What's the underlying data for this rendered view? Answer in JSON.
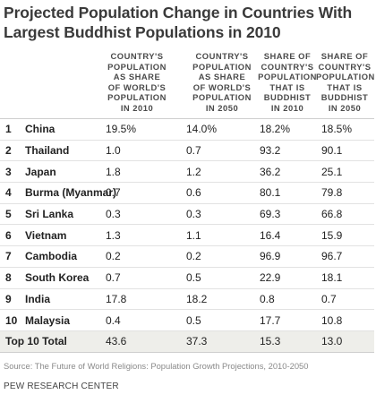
{
  "title": "Projected Population Change in Countries With Largest Buddhist Populations in 2010",
  "headers": [
    [
      "COUNTRY'S",
      "POPULATION",
      "AS SHARE",
      "OF WORLD'S",
      "POPULATION",
      "IN 2010"
    ],
    [
      "COUNTRY'S",
      "POPULATION",
      "AS SHARE",
      "OF WORLD'S",
      "POPULATION",
      "IN 2050"
    ],
    [
      "SHARE OF",
      "COUNTRY'S",
      "POPULATION",
      "THAT IS",
      "BUDDHIST",
      "IN 2010"
    ],
    [
      "SHARE OF",
      "COUNTRY'S",
      "POPULATION",
      "THAT IS",
      "BUDDHIST",
      "IN 2050"
    ]
  ],
  "rows": [
    {
      "rank": "1",
      "country": "China",
      "v1": "19.5%",
      "v2": "14.0%",
      "v3": "18.2%",
      "v4": "18.5%"
    },
    {
      "rank": "2",
      "country": "Thailand",
      "v1": "1.0",
      "v2": "0.7",
      "v3": "93.2",
      "v4": "90.1"
    },
    {
      "rank": "3",
      "country": "Japan",
      "v1": "1.8",
      "v2": "1.2",
      "v3": "36.2",
      "v4": "25.1"
    },
    {
      "rank": "4",
      "country": "Burma (Myanmar)",
      "v1": "0.7",
      "v2": "0.6",
      "v3": "80.1",
      "v4": "79.8"
    },
    {
      "rank": "5",
      "country": "Sri Lanka",
      "v1": "0.3",
      "v2": "0.3",
      "v3": "69.3",
      "v4": "66.8"
    },
    {
      "rank": "6",
      "country": "Vietnam",
      "v1": "1.3",
      "v2": "1.1",
      "v3": "16.4",
      "v4": "15.9"
    },
    {
      "rank": "7",
      "country": "Cambodia",
      "v1": "0.2",
      "v2": "0.2",
      "v3": "96.9",
      "v4": "96.7"
    },
    {
      "rank": "8",
      "country": "South Korea",
      "v1": "0.7",
      "v2": "0.5",
      "v3": "22.9",
      "v4": "18.1"
    },
    {
      "rank": "9",
      "country": "India",
      "v1": "17.8",
      "v2": "18.2",
      "v3": "0.8",
      "v4": "0.7"
    },
    {
      "rank": "10",
      "country": "Malaysia",
      "v1": "0.4",
      "v2": "0.5",
      "v3": "17.7",
      "v4": "10.8"
    }
  ],
  "total": {
    "label": "Top 10 Total",
    "v1": "43.6",
    "v2": "37.3",
    "v3": "15.3",
    "v4": "13.0"
  },
  "source": "Source: The Future of World Religions: Population Growth Projections, 2010-2050",
  "org": "PEW RESEARCH CENTER"
}
